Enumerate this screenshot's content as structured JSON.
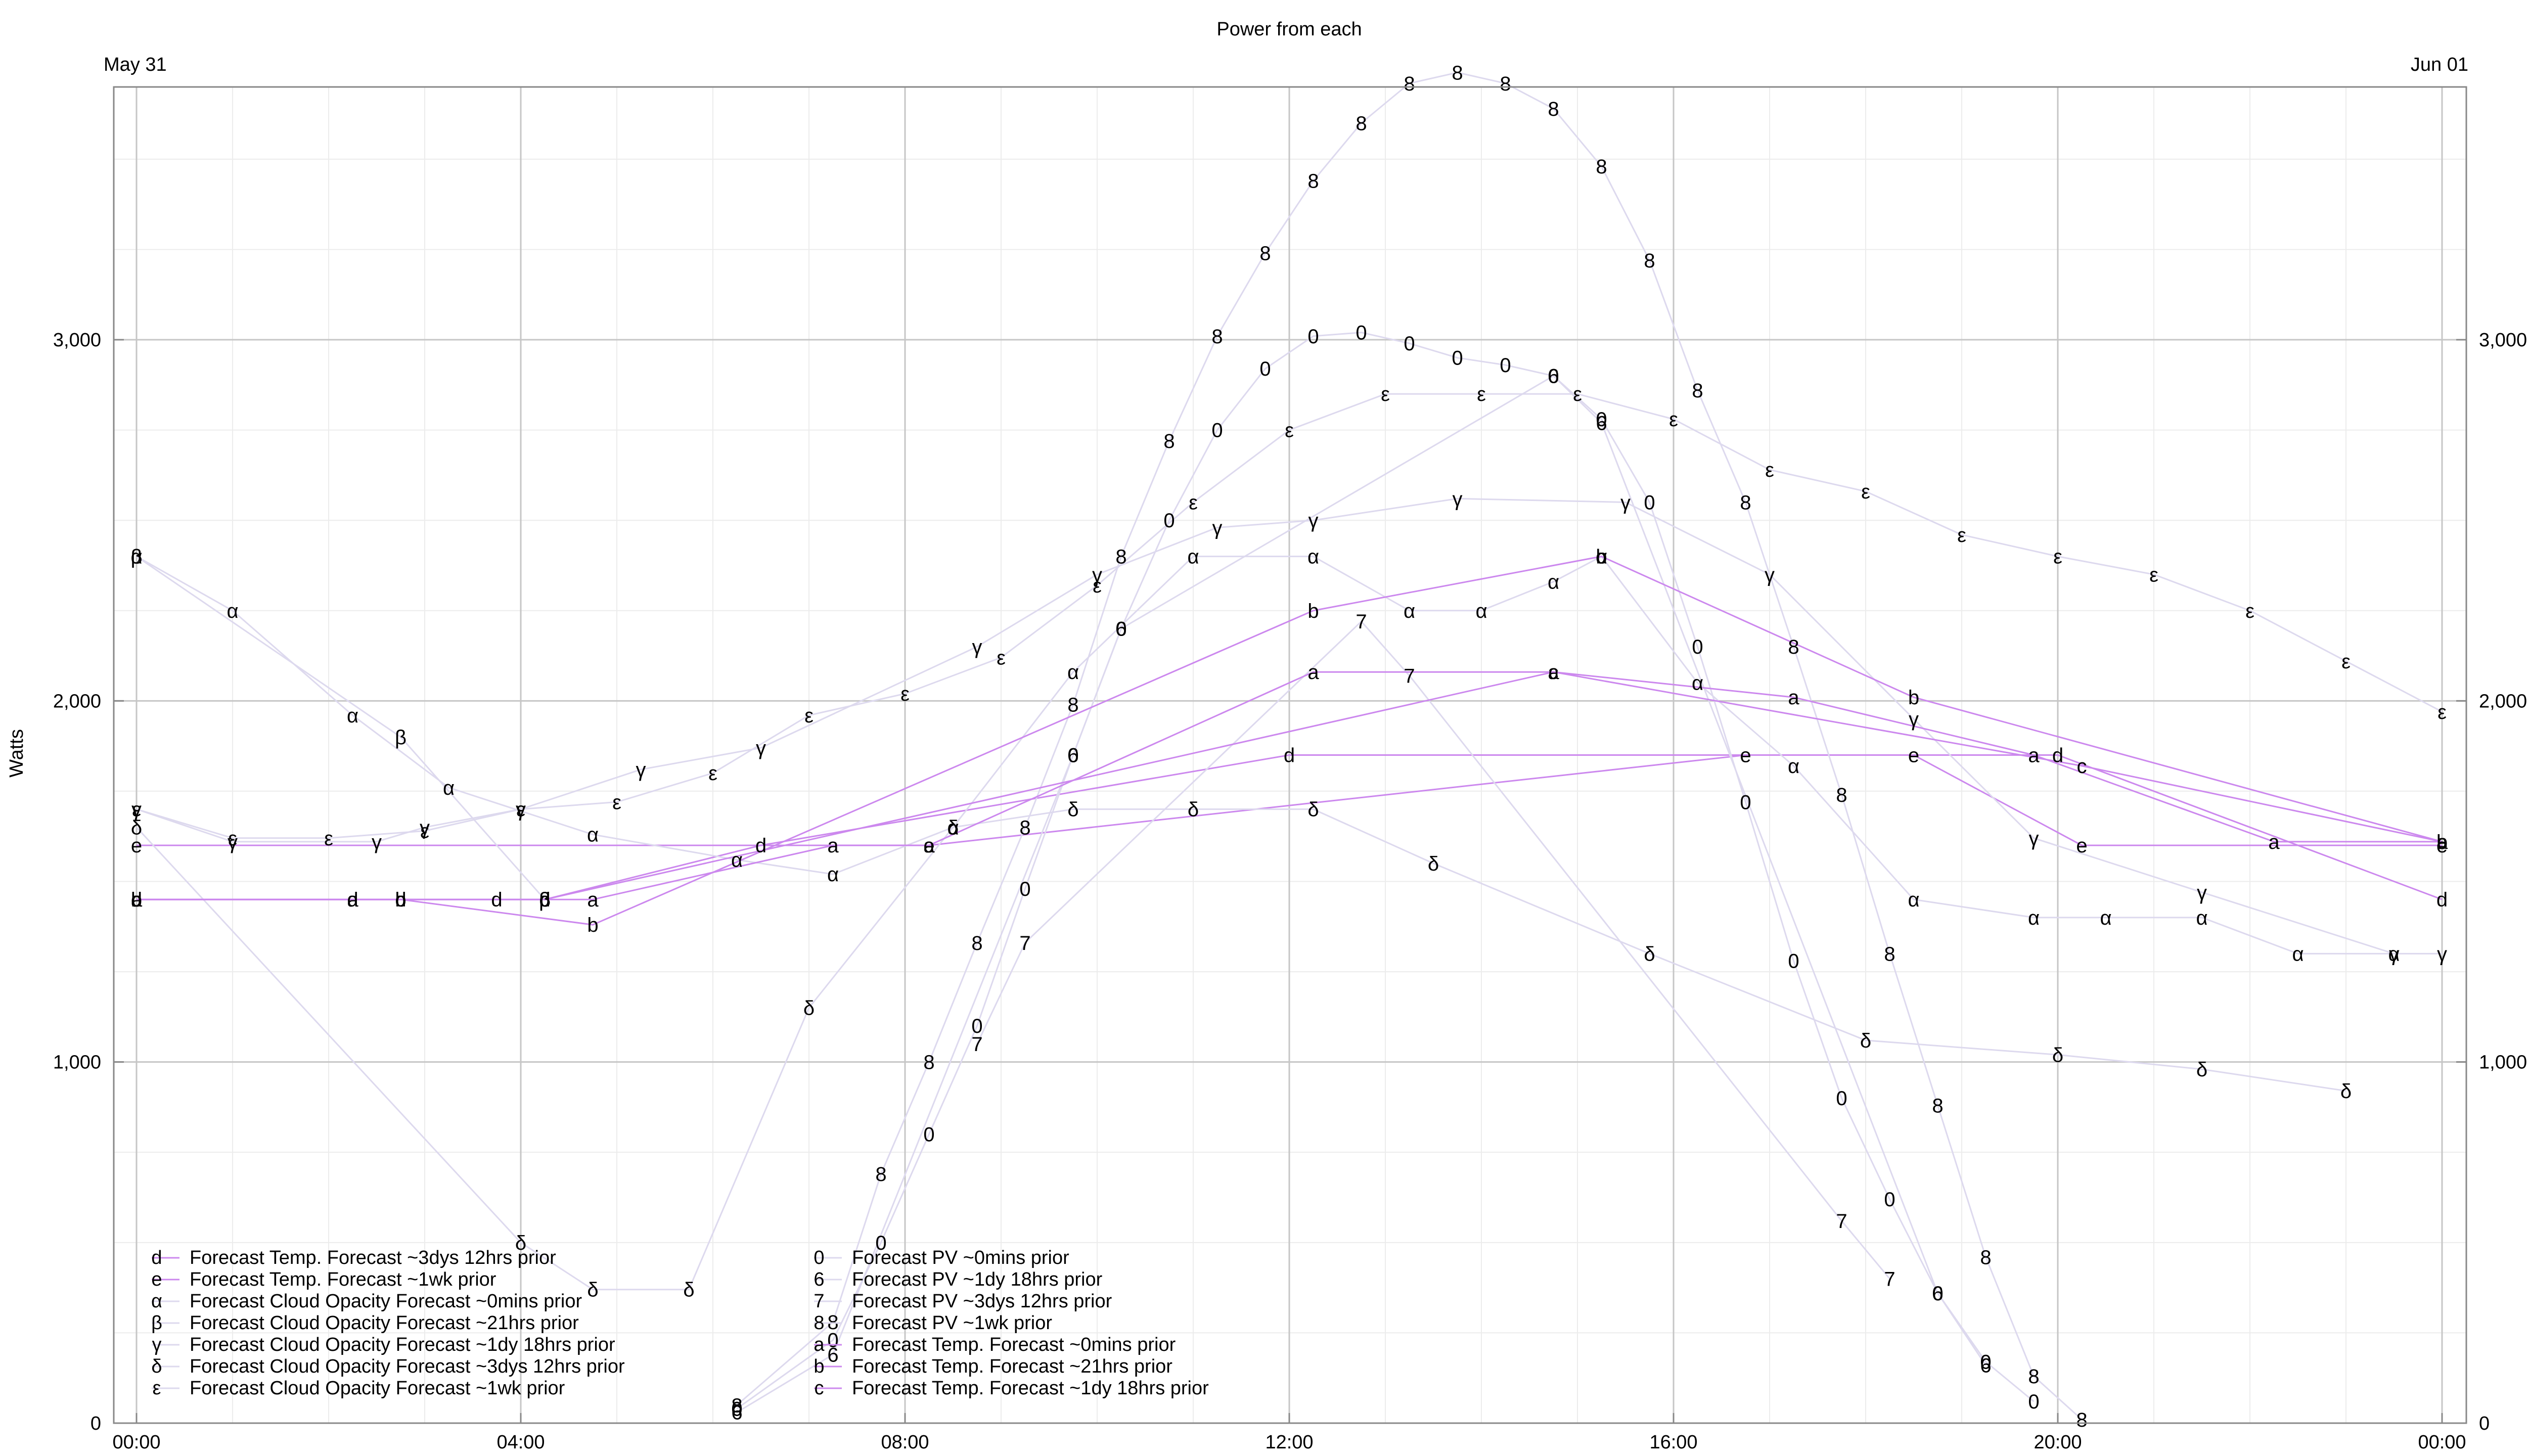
{
  "title": "Power from each",
  "ylabel": "Watts",
  "date_left": "May 31",
  "date_right": "Jun 01",
  "colors": {
    "major_grid": "#c6c6c6",
    "minor_grid": "#ececec",
    "series_light": "#ddd9ee",
    "series_purple": "#cc88ee",
    "frame": "#888888"
  },
  "chart_data": {
    "type": "line",
    "title": "Power from each",
    "ylabel": "Watts",
    "xlim": [
      "00:00",
      "24:00"
    ],
    "ylim": [
      0,
      3700
    ],
    "x_ticks": [
      "00:00",
      "04:00",
      "08:00",
      "12:00",
      "16:00",
      "20:00",
      "00:00"
    ],
    "y_ticks": [
      0,
      1000,
      2000,
      3000
    ],
    "y_tick_labels": [
      "0",
      "1,000",
      "2,000",
      "3,000"
    ],
    "grid": true,
    "legend_position": "bottom-left",
    "series": [
      {
        "name": "Forecast Temp. Forecast ~3dys 12hrs prior",
        "marker": "d",
        "color": "#cc88ee",
        "x": [
          0,
          2.25,
          2.75,
          3.75,
          4.25,
          6.5,
          12,
          20,
          24
        ],
        "y": [
          1450,
          1450,
          1450,
          1450,
          1450,
          1600,
          1850,
          1850,
          1450
        ]
      },
      {
        "name": "Forecast Temp. Forecast ~1wk prior",
        "marker": "e",
        "color": "#cc88ee",
        "x": [
          0,
          8.25,
          16.75,
          18.5,
          20.25,
          24
        ],
        "y": [
          1600,
          1600,
          1850,
          1850,
          1600,
          1600
        ]
      },
      {
        "name": "Forecast Cloud Opacity Forecast ~0mins prior",
        "marker": "α",
        "color": "#ddd9ee",
        "x": [
          0,
          1,
          2.25,
          3.25,
          4.75,
          6.25,
          7.25,
          8.5,
          9.75,
          11,
          12.25,
          13.25,
          14,
          14.75,
          15.25,
          16.25,
          17.25,
          18.5,
          19.75,
          20.5,
          21.5,
          22.5,
          23.5
        ],
        "y": [
          2400,
          2250,
          1960,
          1760,
          1630,
          1560,
          1520,
          1650,
          2080,
          2400,
          2400,
          2250,
          2250,
          2330,
          2400,
          2050,
          1820,
          1450,
          1400,
          1400,
          1400,
          1300,
          1300
        ]
      },
      {
        "name": "Forecast Cloud Opacity Forecast ~21hrs prior",
        "marker": "β",
        "color": "#ddd9ee",
        "x": [
          0,
          2.75,
          4.25
        ],
        "y": [
          2400,
          1900,
          1450
        ]
      },
      {
        "name": "Forecast Cloud Opacity Forecast ~1dy 18hrs prior",
        "marker": "γ",
        "color": "#ddd9ee",
        "x": [
          0,
          1,
          2.5,
          3,
          4,
          5.25,
          6.5,
          8.75,
          10,
          11.25,
          12.25,
          13.75,
          15.5,
          17,
          18.5,
          19.75,
          21.5,
          23.5,
          24
        ],
        "y": [
          1700,
          1610,
          1610,
          1650,
          1700,
          1810,
          1870,
          2150,
          2350,
          2480,
          2500,
          2560,
          2550,
          2350,
          1950,
          1620,
          1470,
          1300,
          1300
        ]
      },
      {
        "name": "Forecast Cloud Opacity Forecast ~3dys 12hrs prior",
        "marker": "δ",
        "color": "#ddd9ee",
        "x": [
          0,
          4,
          4.75,
          5.75,
          7,
          8.5,
          9.75,
          11,
          12.25,
          13.5,
          15.75,
          18,
          20,
          21.5,
          23
        ],
        "y": [
          1650,
          500,
          370,
          370,
          1150,
          1650,
          1700,
          1700,
          1700,
          1550,
          1300,
          1060,
          1020,
          980,
          920
        ]
      },
      {
        "name": "Forecast Cloud Opacity Forecast ~1wk prior",
        "marker": "ε",
        "color": "#ddd9ee",
        "x": [
          0,
          1,
          2,
          3,
          4,
          5,
          6,
          7,
          8,
          9,
          10,
          11,
          12,
          13,
          14,
          15,
          16,
          17,
          18,
          19,
          20,
          21,
          22,
          23,
          24
        ],
        "y": [
          1700,
          1620,
          1620,
          1640,
          1700,
          1720,
          1800,
          1960,
          2020,
          2120,
          2320,
          2550,
          2750,
          2850,
          2850,
          2850,
          2780,
          2640,
          2580,
          2460,
          2400,
          2350,
          2250,
          2110,
          1970
        ]
      },
      {
        "name": "Forecast PV ~0mins prior",
        "marker": "0",
        "color": "#ddd9ee",
        "x": [
          6.25,
          7.25,
          7.75,
          8.25,
          8.75,
          9.25,
          9.75,
          10.25,
          10.75,
          11.25,
          11.75,
          12.25,
          12.75,
          13.25,
          13.75,
          14.25,
          14.75,
          15.25,
          15.75,
          16.25,
          16.75,
          17.25,
          17.75,
          18.25,
          18.75,
          19.25,
          19.75
        ],
        "y": [
          40,
          230,
          500,
          800,
          1100,
          1480,
          1850,
          2200,
          2500,
          2750,
          2920,
          3010,
          3020,
          2990,
          2950,
          2930,
          2900,
          2780,
          2550,
          2150,
          1720,
          1280,
          900,
          620,
          360,
          170,
          60
        ]
      },
      {
        "name": "Forecast PV ~1dy 18hrs prior",
        "marker": "6",
        "color": "#ddd9ee",
        "x": [
          6.25,
          7.25,
          9.75,
          10.25,
          14.75,
          15.25,
          18.75,
          19.25
        ],
        "y": [
          30,
          190,
          1850,
          2200,
          2900,
          2770,
          360,
          160
        ]
      },
      {
        "name": "Forecast PV ~3dys 12hrs prior",
        "marker": "7",
        "color": "#ddd9ee",
        "x": [
          8.75,
          9.25,
          12.75,
          13.25,
          17.75,
          18.25
        ],
        "y": [
          1050,
          1330,
          2220,
          2070,
          560,
          400
        ]
      },
      {
        "name": "Forecast PV ~1wk prior",
        "marker": "8",
        "color": "#ddd9ee",
        "x": [
          6.25,
          7.25,
          7.75,
          8.25,
          8.75,
          9.25,
          9.75,
          10.25,
          10.75,
          11.25,
          11.75,
          12.25,
          12.75,
          13.25,
          13.75,
          14.25,
          14.75,
          15.25,
          15.75,
          16.25,
          16.75,
          17.25,
          17.75,
          18.25,
          18.75,
          19.25,
          19.75,
          20.25
        ],
        "y": [
          50,
          280,
          690,
          1000,
          1330,
          1650,
          1990,
          2400,
          2720,
          3010,
          3240,
          3440,
          3600,
          3710,
          3740,
          3710,
          3640,
          3480,
          3220,
          2860,
          2550,
          2150,
          1740,
          1300,
          880,
          460,
          130,
          10
        ]
      },
      {
        "name": "Forecast Temp. Forecast ~0mins prior",
        "marker": "a",
        "color": "#cc88ee",
        "x": [
          0,
          2.25,
          4.75,
          7.25,
          8.25,
          12.25,
          14.75,
          17.25,
          19.75,
          22.25,
          24
        ],
        "y": [
          1450,
          1450,
          1450,
          1600,
          1600,
          2080,
          2080,
          2010,
          1850,
          1610,
          1610
        ]
      },
      {
        "name": "Forecast Temp. Forecast ~21hrs prior",
        "marker": "b",
        "color": "#cc88ee",
        "x": [
          0,
          2.75,
          4.75,
          12.25,
          15.25,
          18.5,
          24
        ],
        "y": [
          1450,
          1450,
          1380,
          2250,
          2400,
          2010,
          1610
        ]
      },
      {
        "name": "Forecast Temp. Forecast ~1dy 18hrs prior",
        "marker": "c",
        "color": "#cc88ee",
        "x": [
          0,
          4.25,
          14.75,
          20.25,
          24
        ],
        "y": [
          1450,
          1450,
          2080,
          1820,
          1610
        ]
      }
    ]
  }
}
